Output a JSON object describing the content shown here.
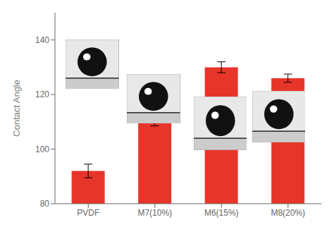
{
  "chart_data": {
    "type": "bar",
    "categories": [
      "PVDF",
      "M7(10%)",
      "M6(15%)",
      "M8(20%)"
    ],
    "values": [
      92,
      110,
      130,
      126
    ],
    "errors": [
      2.5,
      1.5,
      2.0,
      1.5
    ],
    "color": "#e8352a",
    "ylabel": "Contact Angle",
    "ylim": [
      80,
      150
    ],
    "yticks": [
      80,
      100,
      120,
      140
    ]
  }
}
